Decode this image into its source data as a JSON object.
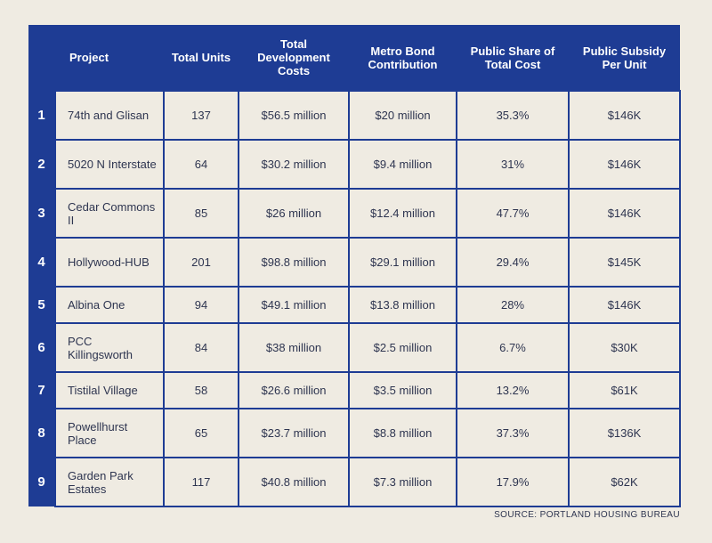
{
  "table": {
    "headers": {
      "project": "Project",
      "units": "Total Units",
      "dev_costs": "Total Development Costs",
      "bond": "Metro Bond Contribution",
      "share": "Public Share of Total Cost",
      "subsidy": "Public Subsidy Per Unit"
    },
    "rows": [
      {
        "num": "1",
        "project": "74th and Glisan",
        "units": "137",
        "dev_costs": "$56.5 million",
        "bond": "$20 million",
        "share": "35.3%",
        "subsidy": "$146K"
      },
      {
        "num": "2",
        "project": "5020 N Interstate",
        "units": "64",
        "dev_costs": "$30.2 million",
        "bond": "$9.4 million",
        "share": "31%",
        "subsidy": "$146K"
      },
      {
        "num": "3",
        "project": "Cedar Commons II",
        "units": "85",
        "dev_costs": "$26 million",
        "bond": "$12.4 million",
        "share": "47.7%",
        "subsidy": "$146K"
      },
      {
        "num": "4",
        "project": "Hollywood-HUB",
        "units": "201",
        "dev_costs": "$98.8 million",
        "bond": "$29.1 million",
        "share": "29.4%",
        "subsidy": "$145K"
      },
      {
        "num": "5",
        "project": "Albina One",
        "units": "94",
        "dev_costs": "$49.1 million",
        "bond": "$13.8 million",
        "share": "28%",
        "subsidy": "$146K"
      },
      {
        "num": "6",
        "project": "PCC Killingsworth",
        "units": "84",
        "dev_costs": "$38 million",
        "bond": "$2.5 million",
        "share": "6.7%",
        "subsidy": "$30K"
      },
      {
        "num": "7",
        "project": "Tistilal Village",
        "units": "58",
        "dev_costs": "$26.6 million",
        "bond": "$3.5 million",
        "share": "13.2%",
        "subsidy": "$61K"
      },
      {
        "num": "8",
        "project": "Powellhurst Place",
        "units": "65",
        "dev_costs": "$23.7 million",
        "bond": "$8.8 million",
        "share": "37.3%",
        "subsidy": "$136K"
      },
      {
        "num": "9",
        "project": "Garden Park Estates",
        "units": "117",
        "dev_costs": "$40.8 million",
        "bond": "$7.3 million",
        "share": "17.9%",
        "subsidy": "$62K"
      }
    ]
  },
  "source": "SOURCE: PORTLAND HOUSING BUREAU",
  "colors": {
    "header_bg": "#1e3c94",
    "cell_bg": "#efebe2",
    "text": "#2e3550"
  }
}
